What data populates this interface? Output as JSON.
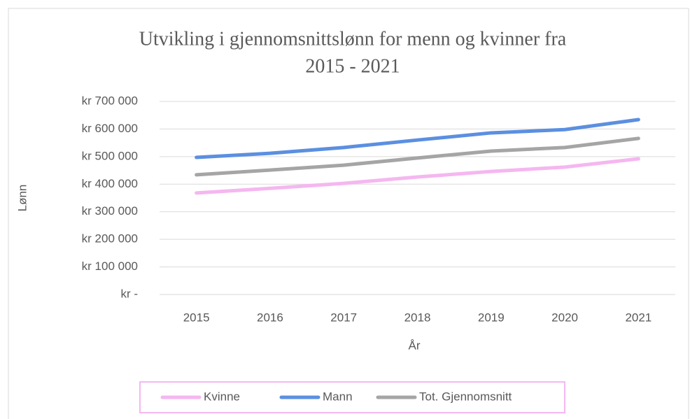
{
  "chart_data": {
    "type": "line",
    "title": [
      "Utvikling  i gjennomsnittslønn for menn og kvinner fra",
      "2015 - 2021"
    ],
    "xlabel": "År",
    "ylabel": "Lønn",
    "categories": [
      "2015",
      "2016",
      "2017",
      "2018",
      "2019",
      "2020",
      "2021"
    ],
    "series": [
      {
        "name": "Kvinne",
        "color": "#f5b7f0",
        "values": [
          368000,
          385000,
          403000,
          426000,
          446000,
          462000,
          492000
        ]
      },
      {
        "name": "Mann",
        "color": "#5b8fe0",
        "values": [
          497000,
          512000,
          533000,
          560000,
          586000,
          598000,
          634000
        ]
      },
      {
        "name": "Tot. Gjennomsnitt",
        "color": "#a5a5a5",
        "values": [
          434000,
          451000,
          469000,
          495000,
          520000,
          533000,
          566000
        ]
      }
    ],
    "ylim": [
      0,
      700000
    ],
    "yticks": [
      {
        "value": 0,
        "label": "kr -"
      },
      {
        "value": 100000,
        "label": "kr 100 000"
      },
      {
        "value": 200000,
        "label": "kr 200 000"
      },
      {
        "value": 300000,
        "label": "kr 300 000"
      },
      {
        "value": 400000,
        "label": "kr 400 000"
      },
      {
        "value": 500000,
        "label": "kr 500 000"
      },
      {
        "value": 600000,
        "label": "kr 600 000"
      },
      {
        "value": 700000,
        "label": "kr 700 000"
      }
    ],
    "grid": true,
    "legend": "bottom"
  }
}
